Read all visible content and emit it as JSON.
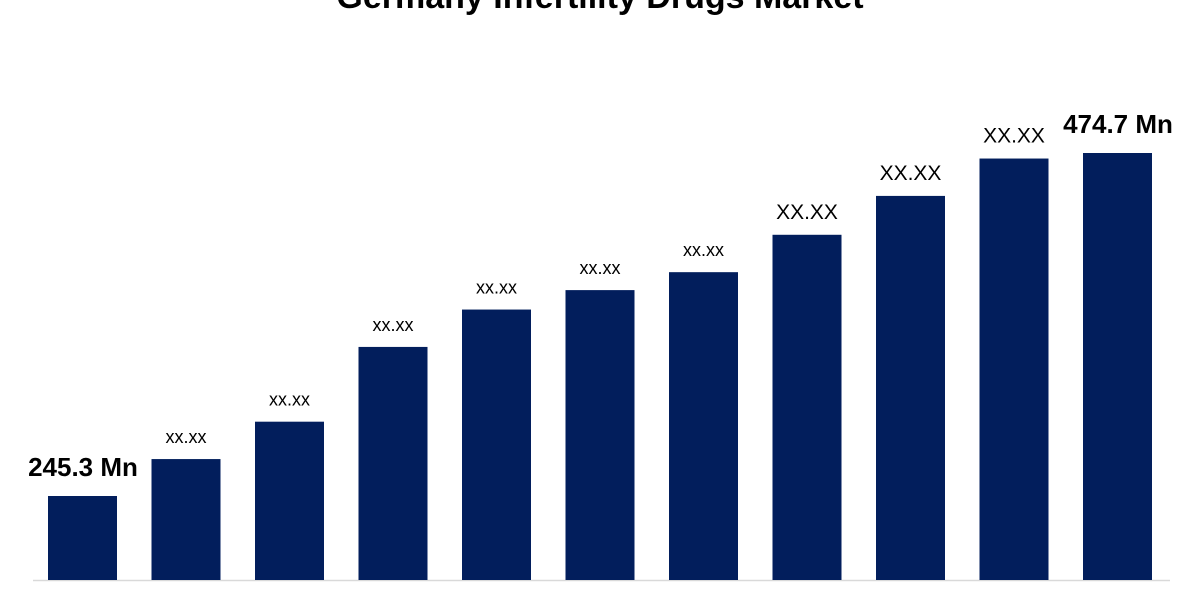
{
  "chart_data": {
    "type": "bar",
    "title": "Germany Infertility Drugs Market",
    "values": [
      245.3,
      270,
      295,
      345,
      370,
      383,
      395,
      420,
      446,
      471,
      474.7
    ],
    "data_labels": [
      "245.3 Mn",
      "xx.xx",
      "xx.xx",
      "xx.xx",
      "xx.xx",
      "xx.xx",
      "xx.xx",
      "XX.XX",
      "XX.XX",
      "XX.XX",
      "474.7 Mn"
    ],
    "ylim": [
      180,
      490
    ],
    "grid": false,
    "bar_color": "#021e5c",
    "axis_color": "#d9d9d9"
  }
}
